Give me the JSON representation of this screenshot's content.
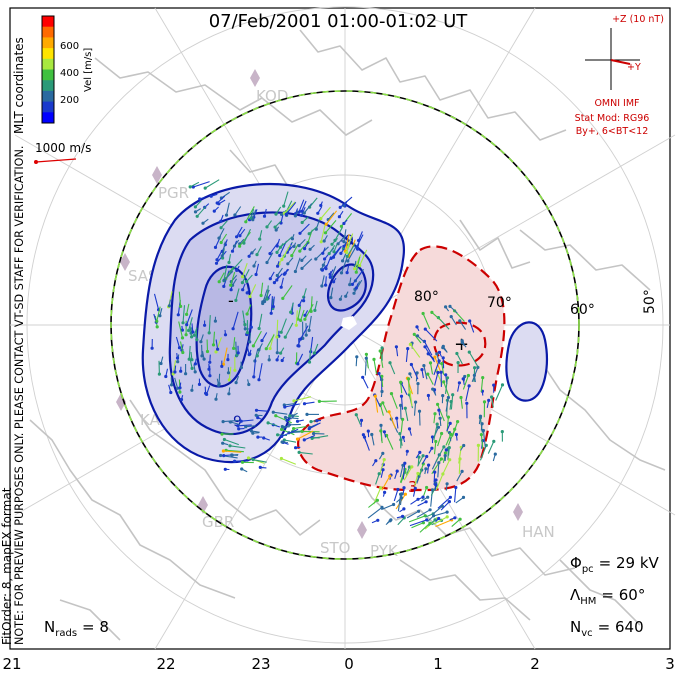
{
  "title": "07/Feb/2001 01:00-01:02 UT",
  "coordinate_label": "MLT coordinates",
  "fit_order_label": "FitOrder: 8,  mapEX format",
  "preview_note": "NOTE: FOR PREVIEW PURPOSES ONLY. PLEASE CONTACT VT-SD STAFF FOR VERIFICATION.",
  "velocity_scale": {
    "axis_label": "Vel [m/s]",
    "ticks": [
      "600",
      "400",
      "200"
    ],
    "colors": [
      "#ff0000",
      "#ff6a00",
      "#ffaa00",
      "#ffe400",
      "#a8e840",
      "#40c040",
      "#2a9a78",
      "#2a6aa0",
      "#1a3acc",
      "#0000ff"
    ]
  },
  "reference_vector_label": "1000 m/s",
  "imf": {
    "z_label": "+Z (10 nT)",
    "y_label": "+Y",
    "source_label": "OMNI IMF",
    "model_line1": "Stat Mod: RG96",
    "model_line2": "By+, 6<BT<12",
    "color": "#cc0000"
  },
  "stations": [
    "KOD",
    "PGR",
    "SAS",
    "KAP",
    "GBR",
    "STO",
    "PYK",
    "HAN"
  ],
  "latitude_labels": [
    "80°",
    "70°",
    "60°",
    "50°"
  ],
  "mlt_labels": [
    "21",
    "22",
    "23",
    "0",
    "1",
    "2",
    "3"
  ],
  "contour_labels": {
    "negative_1": "-9",
    "negative_2": "-9",
    "positive": "3"
  },
  "extrema": {
    "min_marker": "-",
    "max_marker": "+"
  },
  "stats": {
    "phi_symbol": "Φ",
    "phi_sub": "pc",
    "phi_value": "= 29 kV",
    "lambda_symbol": "Λ",
    "lambda_sub": "HM",
    "lambda_value": "= 60°",
    "nvc_symbol": "N",
    "nvc_sub": "vc",
    "nvc_value": "= 640",
    "nrads_symbol": "N",
    "nrads_sub": "rads",
    "nrads_value": "= 8"
  },
  "colors": {
    "negative_cell": "#dcdcf2",
    "negative_line": "#0a1aa8",
    "positive_cell": "#f6dada",
    "positive_line": "#cc0000",
    "map": "#c8c8c8"
  }
}
